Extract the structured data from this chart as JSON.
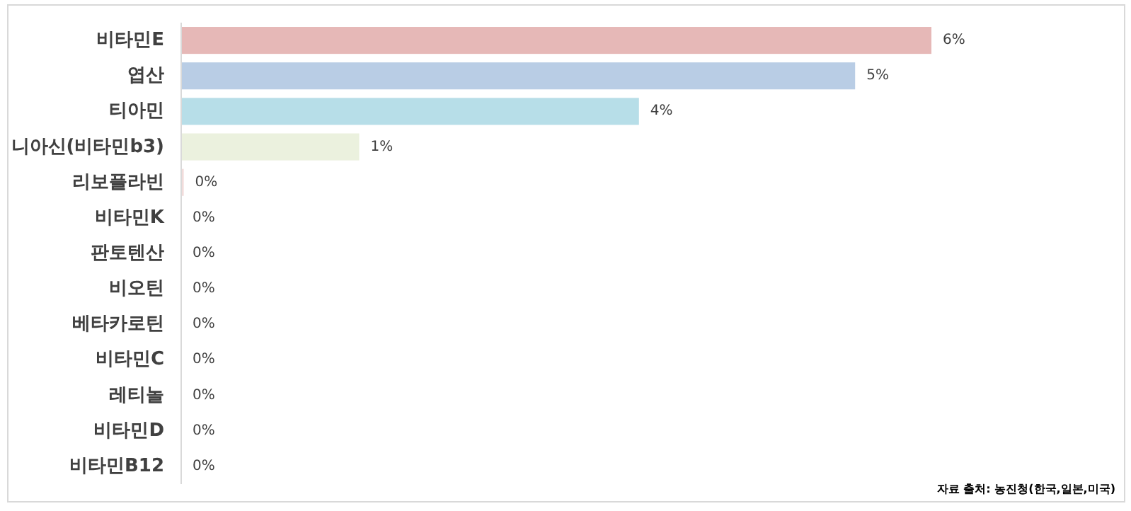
{
  "chart_data": {
    "type": "bar",
    "orientation": "horizontal",
    "categories": [
      "비타민E",
      "엽산",
      "티아민",
      "니아신(비타민b3)",
      "리보플라빈",
      "비타민K",
      "판토텐산",
      "비오틴",
      "베타카로틴",
      "비타민C",
      "레티놀",
      "비타민D",
      "비타민B12"
    ],
    "values": [
      5.9,
      5.3,
      3.6,
      1.4,
      0.02,
      0,
      0,
      0,
      0,
      0,
      0,
      0,
      0
    ],
    "colors": [
      "#e6b8b7",
      "#b9cde5",
      "#b7dee8",
      "#ebf1de",
      "#f2dcdb",
      "#e6b8b7",
      "#b9cde5",
      "#b7dee8",
      "#ebf1de",
      "#f2dcdb",
      "#e6b8b7",
      "#b9cde5",
      "#b7dee8"
    ],
    "value_labels": [
      "6%",
      "5%",
      "4%",
      "1%",
      "0%",
      "0%",
      "0%",
      "0%",
      "0%",
      "0%",
      "0%",
      "0%",
      "0%"
    ],
    "annotations": [
      "자료 출처: 농진청(한국,일본,미국)"
    ]
  }
}
